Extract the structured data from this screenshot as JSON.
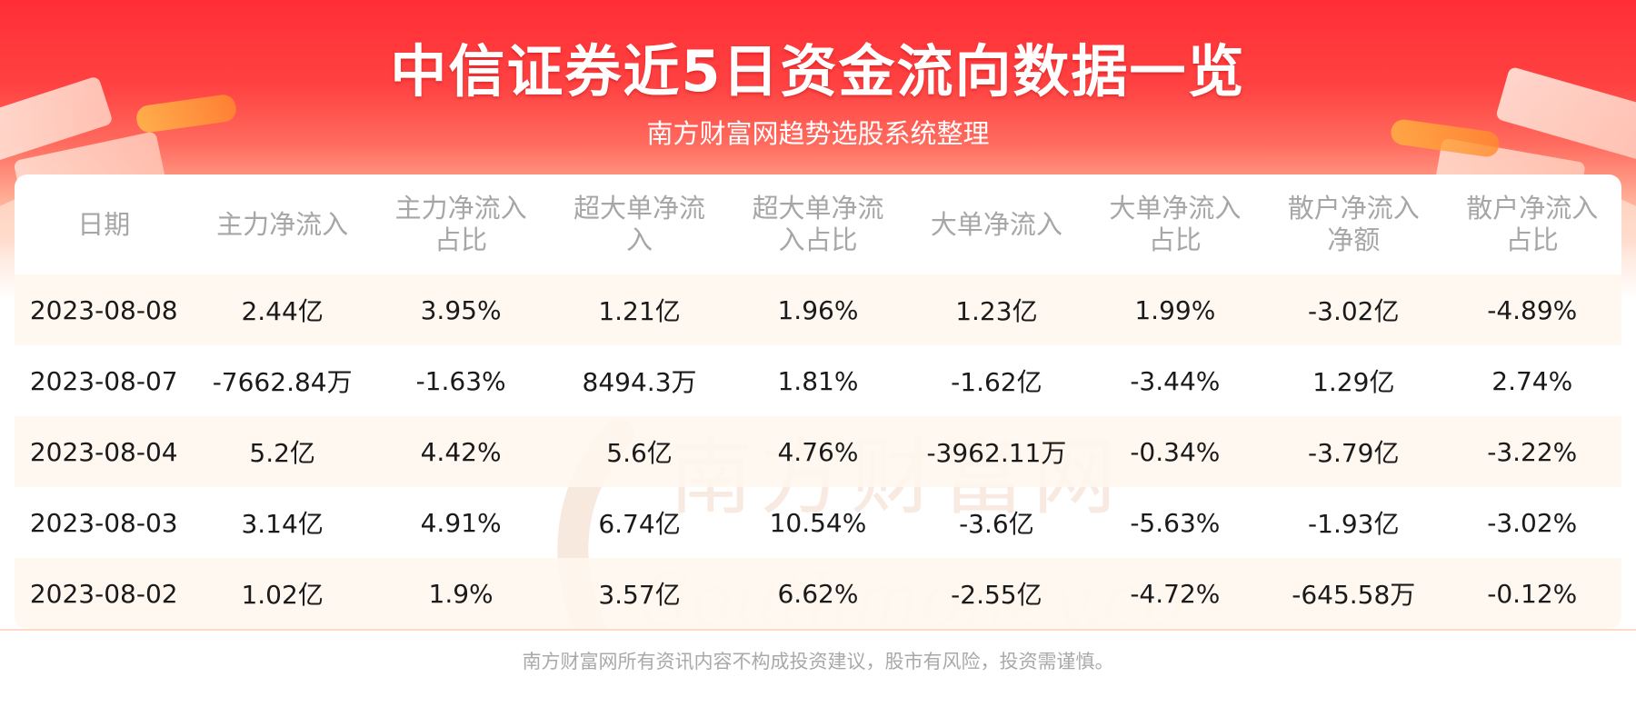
{
  "header": {
    "title": "中信证券近5日资金流向数据一览",
    "subtitle": "南方财富网趋势选股系统整理"
  },
  "watermark": {
    "cn": "南方财富网",
    "en": "Southmoney.com"
  },
  "table": {
    "columns": [
      [
        "日期"
      ],
      [
        "主力净流入"
      ],
      [
        "主力净流入",
        "占比"
      ],
      [
        "超大单净流",
        "入"
      ],
      [
        "超大单净流",
        "入占比"
      ],
      [
        "大单净流入"
      ],
      [
        "大单净流入",
        "占比"
      ],
      [
        "散户净流入",
        "净额"
      ],
      [
        "散户净流入",
        "占比"
      ]
    ],
    "rows": [
      [
        "2023-08-08",
        "2.44亿",
        "3.95%",
        "1.21亿",
        "1.96%",
        "1.23亿",
        "1.99%",
        "-3.02亿",
        "-4.89%"
      ],
      [
        "2023-08-07",
        "-7662.84万",
        "-1.63%",
        "8494.3万",
        "1.81%",
        "-1.62亿",
        "-3.44%",
        "1.29亿",
        "2.74%"
      ],
      [
        "2023-08-04",
        "5.2亿",
        "4.42%",
        "5.6亿",
        "4.76%",
        "-3962.11万",
        "-0.34%",
        "-3.79亿",
        "-3.22%"
      ],
      [
        "2023-08-03",
        "3.14亿",
        "4.91%",
        "6.74亿",
        "10.54%",
        "-3.6亿",
        "-5.63%",
        "-1.93亿",
        "-3.02%"
      ],
      [
        "2023-08-02",
        "1.02亿",
        "1.9%",
        "3.57亿",
        "6.62%",
        "-2.55亿",
        "-4.72%",
        "-645.58万",
        "-0.12%"
      ]
    ]
  },
  "footer": {
    "disclaimer": "南方财富网所有资讯内容不构成投资建议，股市有风险，投资需谨慎。"
  },
  "colors": {
    "banner_red": "#ff2e36",
    "row_stripe": "#fff7ee",
    "header_text": "#a6a6a6",
    "watermark": "#f3d9c8"
  }
}
